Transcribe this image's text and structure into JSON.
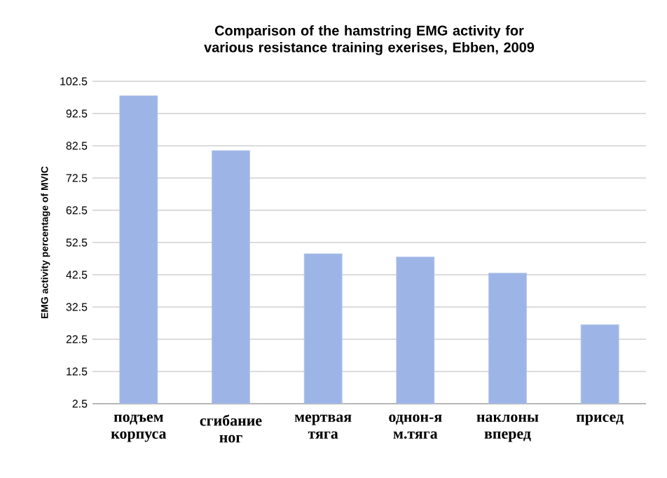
{
  "chart_data": {
    "type": "bar",
    "title": "Comparison of the hamstring EMG activity for various resistance training exerises, Ebben, 2009",
    "ylabel": "EMG activity percentage of MVIC",
    "categories": [
      "подъем корпуса",
      "сгибание ног",
      "мертвая тяга",
      "однон-я м.тяга",
      "наклоны вперед",
      "присед"
    ],
    "values": [
      98,
      81,
      49,
      48,
      43,
      27
    ],
    "color": "#9db5e6",
    "ylim": [
      2.5,
      102.5
    ],
    "yticks": [
      2.5,
      12.5,
      22.5,
      32.5,
      42.5,
      52.5,
      62.5,
      72.5,
      82.5,
      92.5,
      102.5
    ],
    "grid": "y"
  }
}
